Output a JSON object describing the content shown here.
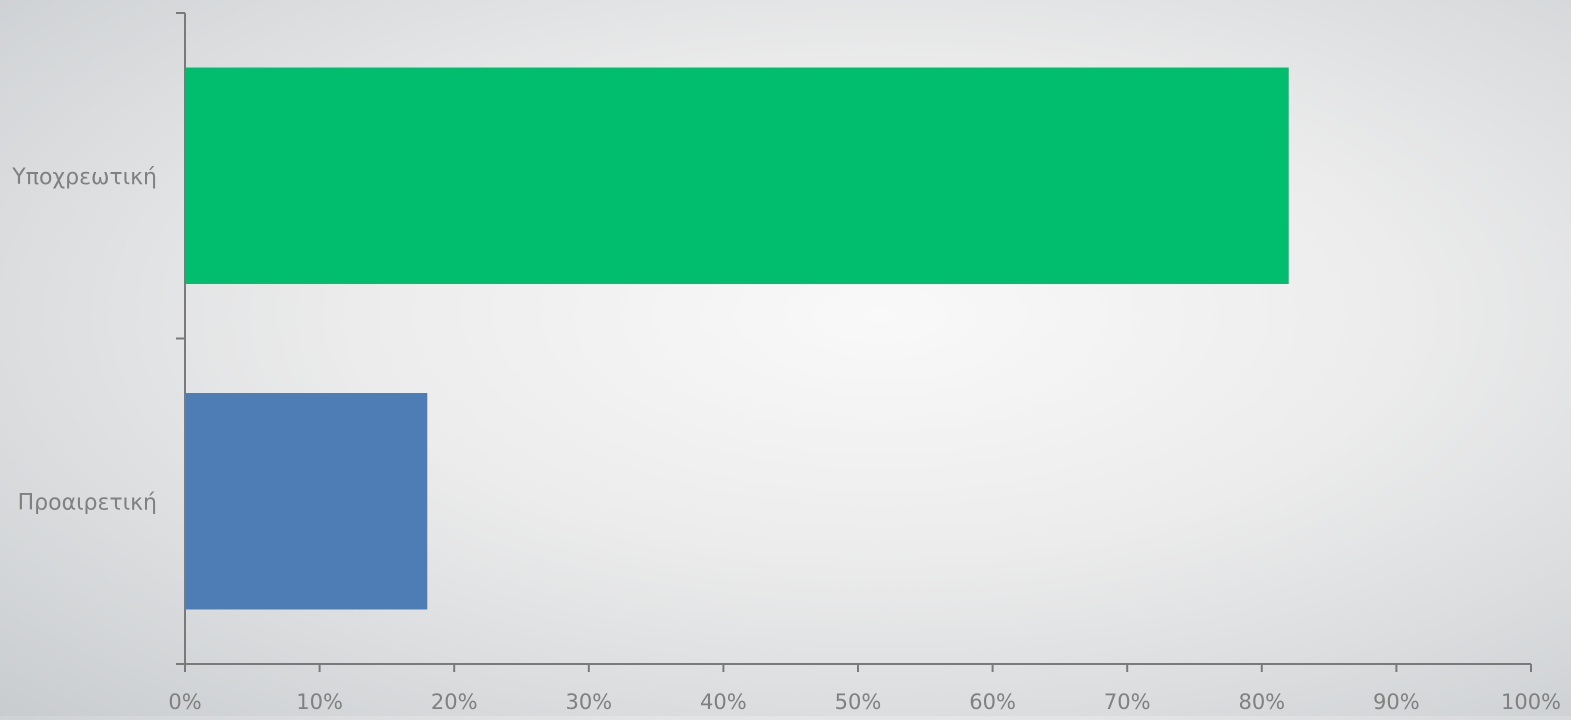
{
  "chart_data": {
    "type": "bar",
    "orientation": "horizontal",
    "categories": [
      "Υποχρεωτική",
      "Προαιρετική"
    ],
    "values": [
      82,
      18
    ],
    "value_unit": "%",
    "bar_colors": [
      "#00be6e",
      "#4e7cb5"
    ],
    "xlim": [
      0,
      100
    ],
    "x_ticks": [
      0,
      10,
      20,
      30,
      40,
      50,
      60,
      70,
      80,
      90,
      100
    ],
    "x_tick_labels": [
      "0%",
      "10%",
      "20%",
      "30%",
      "40%",
      "50%",
      "60%",
      "70%",
      "80%",
      "90%",
      "100%"
    ],
    "title": "",
    "xlabel": "",
    "ylabel": "",
    "legend": "none",
    "grid": false
  },
  "colors": {
    "axis": "#7a7a7a",
    "label_text": "#808080"
  }
}
